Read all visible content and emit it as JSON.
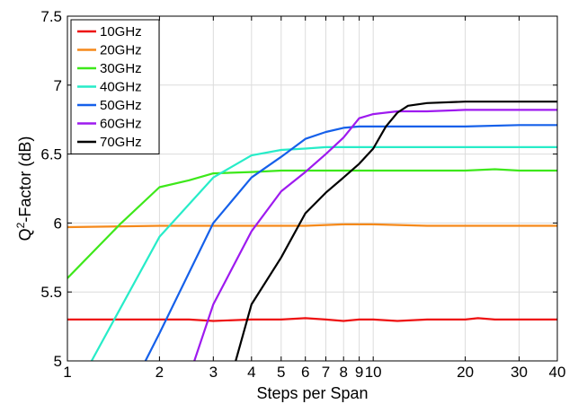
{
  "chart_data": {
    "type": "line",
    "xlabel": "Steps per Span",
    "ylabel_main": "Q",
    "ylabel_sup": "2",
    "ylabel_rest": "-Factor (dB)",
    "xscale": "log",
    "xlim": [
      1,
      40
    ],
    "ylim": [
      5,
      7.5
    ],
    "grid": true,
    "legend_position": "top-left",
    "x_ticks": [
      1,
      2,
      3,
      4,
      5,
      6,
      7,
      8,
      9,
      10,
      20,
      30,
      40
    ],
    "x_tick_labels": [
      "1",
      "2",
      "3",
      "4",
      "5",
      "6",
      "7",
      "8",
      "9",
      "10",
      "20",
      "30",
      "40"
    ],
    "y_ticks": [
      5,
      5.5,
      6,
      6.5,
      7,
      7.5
    ],
    "y_tick_labels": [
      "5",
      "5.5",
      "6",
      "6.5",
      "7",
      "7.5"
    ],
    "series": [
      {
        "name": "10GHz",
        "color": "#ee1111",
        "x": [
          1,
          2,
          2.5,
          3,
          4,
          5,
          6,
          7,
          8,
          9,
          10,
          12,
          15,
          20,
          22,
          25,
          30,
          40
        ],
        "y": [
          5.3,
          5.3,
          5.3,
          5.29,
          5.3,
          5.3,
          5.31,
          5.3,
          5.29,
          5.3,
          5.3,
          5.29,
          5.3,
          5.3,
          5.31,
          5.3,
          5.3,
          5.3
        ]
      },
      {
        "name": "20GHz",
        "color": "#f5891a",
        "x": [
          1,
          2,
          3,
          4,
          5,
          6,
          8,
          10,
          15,
          20,
          30,
          40
        ],
        "y": [
          5.97,
          5.98,
          5.98,
          5.98,
          5.98,
          5.98,
          5.99,
          5.99,
          5.98,
          5.98,
          5.98,
          5.98
        ]
      },
      {
        "name": "30GHz",
        "color": "#3de81a",
        "x": [
          1,
          1.5,
          2,
          2.5,
          3,
          4,
          5,
          6,
          8,
          10,
          15,
          20,
          25,
          30,
          40
        ],
        "y": [
          5.6,
          6.0,
          6.26,
          6.31,
          6.36,
          6.37,
          6.38,
          6.38,
          6.38,
          6.38,
          6.38,
          6.38,
          6.39,
          6.38,
          6.38
        ]
      },
      {
        "name": "40GHz",
        "color": "#27ecc8",
        "x": [
          1.2,
          2,
          3,
          4,
          5,
          6,
          7,
          8,
          10,
          15,
          20,
          30,
          40
        ],
        "y": [
          5.0,
          5.9,
          6.33,
          6.49,
          6.53,
          6.54,
          6.55,
          6.55,
          6.55,
          6.55,
          6.55,
          6.55,
          6.55
        ]
      },
      {
        "name": "50GHz",
        "color": "#1560ea",
        "x": [
          1.8,
          2,
          3,
          4,
          5,
          6,
          7,
          8,
          9,
          10,
          15,
          20,
          30,
          40
        ],
        "y": [
          5.0,
          5.2,
          6.0,
          6.33,
          6.48,
          6.61,
          6.66,
          6.69,
          6.7,
          6.7,
          6.7,
          6.7,
          6.71,
          6.71
        ]
      },
      {
        "name": "60GHz",
        "color": "#9e1aef",
        "x": [
          2.6,
          3,
          4,
          5,
          6,
          7,
          8,
          9,
          10,
          12,
          15,
          20,
          30,
          40
        ],
        "y": [
          5.0,
          5.41,
          5.94,
          6.23,
          6.37,
          6.5,
          6.62,
          6.76,
          6.79,
          6.81,
          6.81,
          6.82,
          6.82,
          6.82
        ]
      },
      {
        "name": "70GHz",
        "color": "#000000",
        "x": [
          3.55,
          4,
          5,
          6,
          7,
          8,
          9,
          10,
          11,
          12,
          13,
          15,
          20,
          30,
          40
        ],
        "y": [
          5.0,
          5.41,
          5.75,
          6.07,
          6.22,
          6.33,
          6.43,
          6.54,
          6.7,
          6.8,
          6.85,
          6.87,
          6.88,
          6.88,
          6.88
        ]
      }
    ]
  }
}
